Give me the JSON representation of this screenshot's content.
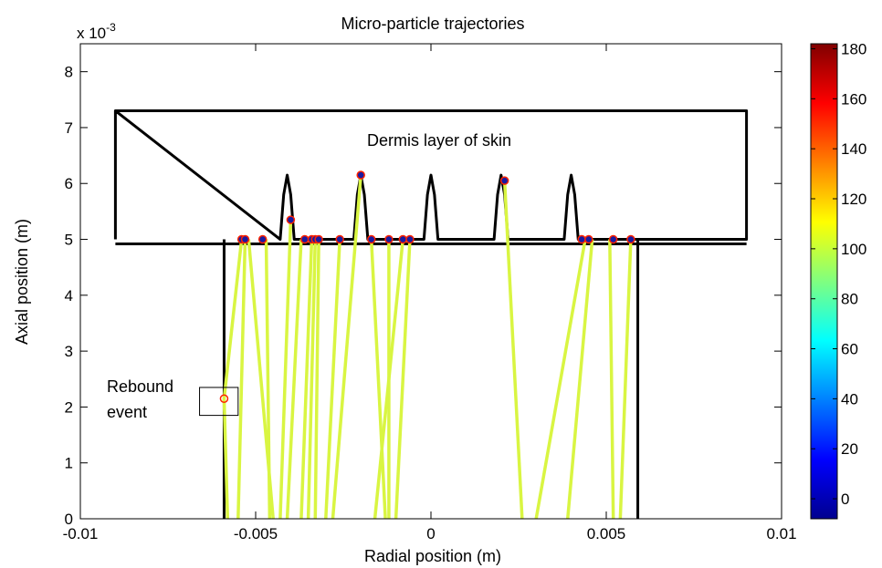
{
  "chart_data": {
    "type": "line",
    "title": "Micro-particle trajectories",
    "xlabel": "Radial position (m)",
    "ylabel": "Axial position (m)",
    "y_exponent_label": "x 10",
    "y_exponent_power": "-3",
    "xlim": [
      -0.01,
      0.01
    ],
    "ylim": [
      0,
      8.5
    ],
    "xticks": [
      -0.01,
      -0.005,
      0,
      0.005,
      0.01
    ],
    "xtick_labels": [
      "-0.01",
      "-0.005",
      "0",
      "0.005",
      "0.01"
    ],
    "yticks": [
      0,
      1,
      2,
      3,
      4,
      5,
      6,
      7,
      8
    ],
    "ytick_labels": [
      "0",
      "1",
      "2",
      "3",
      "4",
      "5",
      "6",
      "7",
      "8"
    ],
    "grid": false,
    "colorbar": {
      "ticks": [
        0,
        20,
        40,
        60,
        80,
        100,
        120,
        140,
        160,
        180
      ],
      "tick_labels": [
        "0",
        "20",
        "40",
        "60",
        "80",
        "100",
        "120",
        "140",
        "160",
        "180"
      ],
      "range": [
        -8,
        182
      ]
    },
    "annotations": {
      "dermis_label": "Dermis layer of skin",
      "rebound_line1": "Rebound",
      "rebound_line2": "event",
      "rebound_box": {
        "x": [
          -0.0066,
          -0.0055
        ],
        "y": [
          1.85,
          2.35
        ]
      }
    },
    "skin_outline": {
      "x": [
        -0.009,
        -0.009,
        -0.0043,
        -0.0042,
        -0.0041,
        -0.004,
        -0.0039,
        -0.0022,
        -0.0021,
        -0.002,
        -0.0019,
        -0.0018,
        -0.0002,
        -0.0001,
        0,
        0.0001,
        0.0002,
        0.0018,
        0.0019,
        0.002,
        0.0021,
        0.0022,
        0.0038,
        0.0039,
        0.004,
        0.0041,
        0.0042,
        0.009,
        0.009,
        -0.009
      ],
      "y": [
        5.0,
        7.3,
        5.0,
        5.8,
        6.15,
        5.8,
        5.0,
        5.0,
        5.8,
        6.15,
        5.8,
        5.0,
        5.0,
        5.8,
        6.15,
        5.8,
        5.0,
        5.0,
        5.8,
        6.15,
        5.8,
        5.0,
        5.0,
        5.8,
        6.15,
        5.8,
        5.0,
        5.0,
        7.3,
        7.3
      ]
    },
    "nozzle_walls": {
      "left_x": -0.0059,
      "right_x": 0.0059,
      "y": [
        0,
        5.0
      ]
    },
    "trajectory_color": "#d9f542",
    "marker_edge_color": "#ff2200",
    "marker_face_color": "#1a1aa0",
    "trajectories": [
      {
        "x": [
          -0.0055,
          -0.0053
        ],
        "y": [
          0,
          5.0
        ]
      },
      {
        "x": [
          -0.0045,
          -0.0052
        ],
        "y": [
          0,
          5.0
        ]
      },
      {
        "x": [
          -0.0046,
          -0.0047
        ],
        "y": [
          0,
          5.0
        ]
      },
      {
        "x": [
          -0.0043,
          -0.004
        ],
        "y": [
          0,
          5.35
        ]
      },
      {
        "x": [
          -0.0041,
          -0.0037
        ],
        "y": [
          0,
          5.0
        ]
      },
      {
        "x": [
          -0.0037,
          -0.0034
        ],
        "y": [
          0,
          5.0
        ]
      },
      {
        "x": [
          -0.0035,
          -0.0033
        ],
        "y": [
          0,
          5.0
        ]
      },
      {
        "x": [
          -0.0033,
          -0.0032
        ],
        "y": [
          0,
          5.0
        ]
      },
      {
        "x": [
          -0.003,
          -0.0026
        ],
        "y": [
          0,
          5.0
        ]
      },
      {
        "x": [
          -0.0028,
          -0.002
        ],
        "y": [
          0,
          6.15
        ]
      },
      {
        "x": [
          -0.0013,
          -0.0017
        ],
        "y": [
          0,
          5.0
        ]
      },
      {
        "x": [
          -0.0012,
          -0.0012
        ],
        "y": [
          0,
          5.0
        ]
      },
      {
        "x": [
          -0.0016,
          -0.0008
        ],
        "y": [
          0,
          5.0
        ]
      },
      {
        "x": [
          -0.001,
          -0.0006
        ],
        "y": [
          0,
          5.0
        ]
      },
      {
        "x": [
          0.0026,
          0.0021
        ],
        "y": [
          0,
          6.05
        ]
      },
      {
        "x": [
          0.003,
          0.0044
        ],
        "y": [
          0,
          5.0
        ]
      },
      {
        "x": [
          0.0039,
          0.0046
        ],
        "y": [
          0,
          5.0
        ]
      },
      {
        "x": [
          0.0052,
          0.0051
        ],
        "y": [
          0,
          5.0
        ]
      },
      {
        "x": [
          0.0054,
          0.0057
        ],
        "y": [
          0,
          5.0
        ]
      },
      {
        "x": [
          -0.0054,
          -0.0059,
          -0.0058
        ],
        "y": [
          5.0,
          2.15,
          0
        ]
      }
    ],
    "impact_markers": [
      {
        "x": -0.0054,
        "y": 5.0
      },
      {
        "x": -0.0053,
        "y": 5.0
      },
      {
        "x": -0.0048,
        "y": 5.0
      },
      {
        "x": -0.004,
        "y": 5.35
      },
      {
        "x": -0.0036,
        "y": 5.0
      },
      {
        "x": -0.0034,
        "y": 5.0
      },
      {
        "x": -0.0033,
        "y": 5.0
      },
      {
        "x": -0.0032,
        "y": 5.0
      },
      {
        "x": -0.0026,
        "y": 5.0
      },
      {
        "x": -0.002,
        "y": 6.15
      },
      {
        "x": -0.0017,
        "y": 5.0
      },
      {
        "x": -0.0012,
        "y": 5.0
      },
      {
        "x": -0.0008,
        "y": 5.0
      },
      {
        "x": -0.0006,
        "y": 5.0
      },
      {
        "x": 0.0021,
        "y": 6.05
      },
      {
        "x": 0.0043,
        "y": 5.0
      },
      {
        "x": 0.0045,
        "y": 5.0
      },
      {
        "x": 0.0052,
        "y": 5.0
      },
      {
        "x": 0.0057,
        "y": 5.0
      }
    ],
    "rebound_marker": {
      "x": -0.0059,
      "y": 2.15
    }
  }
}
